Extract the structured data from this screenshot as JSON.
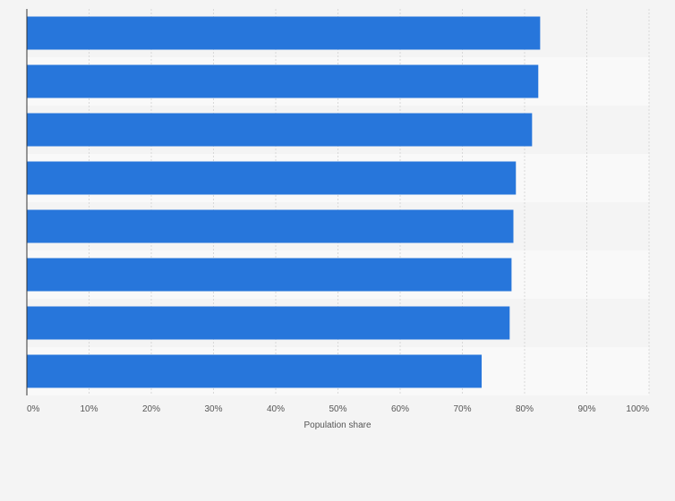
{
  "chart_data": {
    "type": "bar",
    "orientation": "horizontal",
    "title": "",
    "xlabel": "Population share",
    "ylabel": "",
    "xlim": [
      0,
      100
    ],
    "x_ticks": [
      "0%",
      "10%",
      "20%",
      "30%",
      "40%",
      "50%",
      "60%",
      "70%",
      "80%",
      "90%",
      "100%"
    ],
    "categories": [
      "",
      "",
      "",
      "",
      "",
      "",
      "",
      ""
    ],
    "values": [
      82.5,
      82.2,
      81.2,
      78.6,
      78.2,
      77.9,
      77.6,
      73.1
    ],
    "grid": true,
    "legend": "none"
  },
  "colors": {
    "bar": "#2776db",
    "background": "#f4f4f4",
    "band": "#f9f9f9",
    "grid": "#d9d9d9",
    "axis": "#333333",
    "text": "#555555"
  }
}
